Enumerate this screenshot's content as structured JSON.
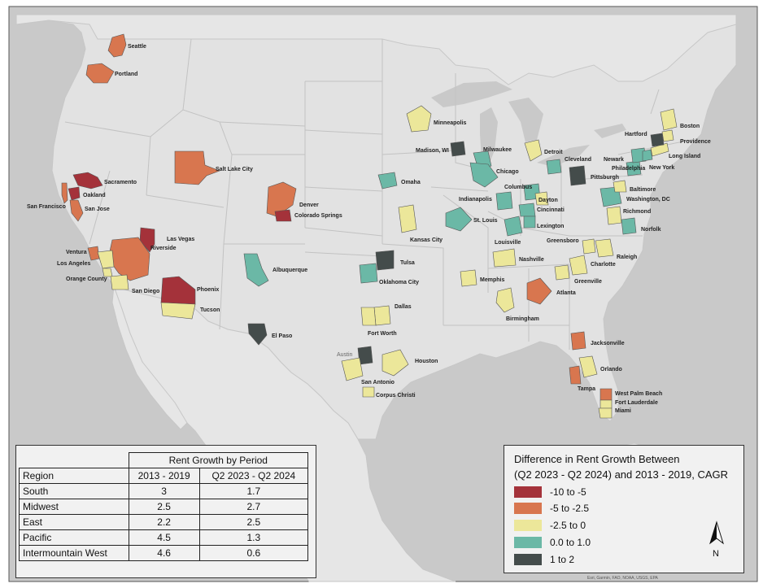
{
  "map": {
    "cities": [
      "Seattle",
      "Portland",
      "Sacramento",
      "Oakland",
      "San Francisco",
      "San Jose",
      "Salt Lake City",
      "Denver",
      "Colorado Springs",
      "Las Vegas",
      "Riverside",
      "Ventura",
      "Los Angeles",
      "Orange County",
      "San Diego",
      "Phoenix",
      "Tucson",
      "Albuquerque",
      "El Paso",
      "Minneapolis",
      "Madison, WI",
      "Milwaukee",
      "Detroit",
      "Chicago",
      "Omaha",
      "Indianapolis",
      "Columbus",
      "Dayton",
      "Cincinnati",
      "St. Louis",
      "Kansas City",
      "Louisville",
      "Lexington",
      "Tulsa",
      "Oklahoma City",
      "Memphis",
      "Nashville",
      "Dallas",
      "Fort Worth",
      "Austin",
      "Houston",
      "San Antonio",
      "Corpus Christi",
      "Birmingham",
      "Atlanta",
      "Jacksonville",
      "Orlando",
      "Tampa",
      "West Palm Beach",
      "Fort Lauderdale",
      "Miami",
      "Greensboro",
      "Charlotte",
      "Raleigh",
      "Greenville",
      "Norfolk",
      "Richmond",
      "Washington, DC",
      "Baltimore",
      "Philadelphia",
      "Pittsburgh",
      "Cleveland",
      "Newark",
      "New York",
      "Long Island",
      "Hartford",
      "Providence",
      "Boston"
    ],
    "attribution": "Esri, Garmin, FAO, NOAA, USGS, EPA",
    "compass_letter": "N"
  },
  "table": {
    "title": "Rent Growth by Period",
    "header": {
      "region": "Region",
      "col1": "2013 - 2019",
      "col2": "Q2 2023 - Q2 2024"
    },
    "rows": [
      {
        "region": "South",
        "col1": "3",
        "col2": "1.7"
      },
      {
        "region": "Midwest",
        "col1": "2.5",
        "col2": "2.7"
      },
      {
        "region": "East",
        "col1": "2.2",
        "col2": "2.5"
      },
      {
        "region": "Pacific",
        "col1": "4.5",
        "col2": "1.3"
      },
      {
        "region": "Intermountain West",
        "col1": "4.6",
        "col2": "0.6"
      }
    ]
  },
  "legend": {
    "title_line1": "Difference in Rent Growth Between",
    "title_line2": "(Q2 2023 - Q2 2024) and 2013 - 2019, CAGR",
    "items": [
      {
        "label": "-10 to -5",
        "color": "#a4323a"
      },
      {
        "label": "-5 to -2.5",
        "color": "#d8764f"
      },
      {
        "label": "-2.5 to 0",
        "color": "#ece79a"
      },
      {
        "label": "0.0 to 1.0",
        "color": "#6bb8a6"
      },
      {
        "label": "1 to 2",
        "color": "#444c4b"
      }
    ]
  }
}
